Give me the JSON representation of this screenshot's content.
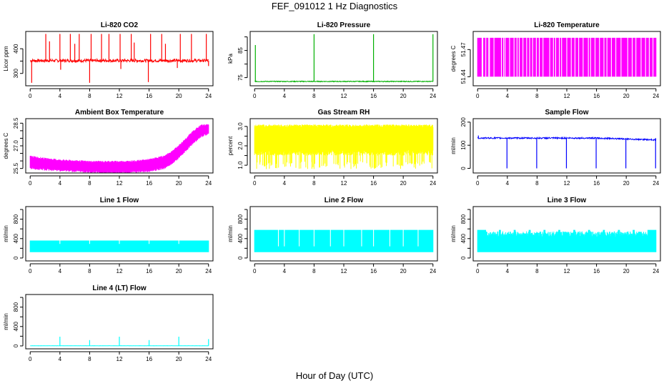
{
  "title": "FEF_091012  1 Hz Diagnostics",
  "xlabel": "Hour of Day (UTC)",
  "x_ticks": [
    0,
    4,
    8,
    12,
    16,
    20,
    24
  ],
  "chart_data": [
    {
      "type": "line",
      "title": "Li-820 CO2",
      "ylabel": "Licor ppm",
      "color": "#ff0000",
      "ylim": [
        250,
        470
      ],
      "yticks": [
        300,
        350,
        400
      ],
      "yticklabels": [
        "300",
        "",
        "400"
      ],
      "baseline": 352,
      "noise": 6,
      "spikes_up": [
        {
          "x": 2.1,
          "y": 460
        },
        {
          "x": 2.6,
          "y": 430
        },
        {
          "x": 4.0,
          "y": 460
        },
        {
          "x": 5.4,
          "y": 460
        },
        {
          "x": 6.0,
          "y": 420
        },
        {
          "x": 6.6,
          "y": 460
        },
        {
          "x": 8.2,
          "y": 460
        },
        {
          "x": 9.6,
          "y": 460
        },
        {
          "x": 10.6,
          "y": 460
        },
        {
          "x": 12.1,
          "y": 460
        },
        {
          "x": 13.6,
          "y": 460
        },
        {
          "x": 14.0,
          "y": 425
        },
        {
          "x": 16.2,
          "y": 460
        },
        {
          "x": 17.7,
          "y": 460
        },
        {
          "x": 18.2,
          "y": 420
        },
        {
          "x": 20.2,
          "y": 460
        },
        {
          "x": 21.7,
          "y": 460
        },
        {
          "x": 23.7,
          "y": 460
        }
      ],
      "spikes_down": [
        {
          "x": 0.2,
          "y": 262
        },
        {
          "x": 4.1,
          "y": 315
        },
        {
          "x": 8.0,
          "y": 262
        },
        {
          "x": 12.2,
          "y": 318
        },
        {
          "x": 15.9,
          "y": 265
        },
        {
          "x": 19.8,
          "y": 322
        },
        {
          "x": 24.0,
          "y": 330
        }
      ]
    },
    {
      "type": "line",
      "title": "Li-820 Pressure",
      "ylabel": "kPa",
      "color": "#00b000",
      "ylim": [
        72,
        92
      ],
      "yticks": [
        75,
        80,
        85,
        90
      ],
      "yticklabels": [
        "75",
        "",
        "85",
        ""
      ],
      "baseline": 73.6,
      "noise": 0.15,
      "spikes_up": [
        {
          "x": 0.1,
          "y": 87
        },
        {
          "x": 8.0,
          "y": 91
        },
        {
          "x": 16.0,
          "y": 91
        },
        {
          "x": 24.0,
          "y": 91
        }
      ],
      "spikes_down": []
    },
    {
      "type": "area",
      "title": "Li-820 Temperature",
      "ylabel": "degrees C",
      "color": "#ff00ff",
      "ylim": [
        51.43,
        51.49
      ],
      "yticks": [
        51.44,
        51.47
      ],
      "yticklabels": [
        "51.44",
        "51.47"
      ],
      "band": [
        51.44,
        51.483
      ],
      "gaps": [
        0.6,
        0.7,
        1.1,
        1.5,
        1.6,
        2.2,
        3.2,
        3.5,
        3.7,
        4.3,
        4.9,
        5.3,
        5.6,
        6.1,
        6.6,
        7.0,
        7.4,
        7.9,
        8.3,
        8.8,
        9.7,
        10.2,
        10.5,
        11.0,
        11.3,
        12.0,
        12.6,
        13.1,
        13.6,
        14.2,
        14.9,
        15.2,
        15.8,
        16.4,
        17.0,
        17.4,
        18.0,
        18.6,
        19.3,
        20.2,
        20.8,
        21.3,
        22.0,
        22.6,
        23.1,
        23.6
      ]
    },
    {
      "type": "area",
      "title": "Ambient Box Temperature",
      "ylabel": "degrees C",
      "color": "#ff00ff",
      "ylim": [
        25.2,
        28.8
      ],
      "yticks": [
        25.5,
        26,
        26.5,
        27,
        27.5,
        28,
        28.5
      ],
      "yticklabels": [
        "25.5",
        "",
        "",
        "27.0",
        "",
        "",
        "28.5"
      ],
      "upper": [
        [
          0,
          26.3
        ],
        [
          2,
          26.15
        ],
        [
          4,
          26.05
        ],
        [
          6,
          26.0
        ],
        [
          8,
          25.95
        ],
        [
          10,
          25.95
        ],
        [
          12,
          25.95
        ],
        [
          14,
          25.98
        ],
        [
          16,
          26.08
        ],
        [
          18,
          26.3
        ],
        [
          19,
          26.6
        ],
        [
          20,
          27.0
        ],
        [
          21,
          27.5
        ],
        [
          22,
          28.0
        ],
        [
          23,
          28.35
        ],
        [
          24,
          28.4
        ]
      ],
      "lower": [
        [
          0,
          25.6
        ],
        [
          2,
          25.5
        ],
        [
          4,
          25.45
        ],
        [
          6,
          25.4
        ],
        [
          8,
          25.35
        ],
        [
          10,
          25.3
        ],
        [
          12,
          25.3
        ],
        [
          14,
          25.35
        ],
        [
          16,
          25.4
        ],
        [
          18,
          25.6
        ],
        [
          19,
          25.9
        ],
        [
          20,
          26.3
        ],
        [
          21,
          26.8
        ],
        [
          22,
          27.3
        ],
        [
          23,
          27.7
        ],
        [
          24,
          27.9
        ]
      ]
    },
    {
      "type": "area",
      "title": "Gas Stream RH",
      "ylabel": "percent",
      "color": "#ffff00",
      "ylim": [
        0.6,
        3.4
      ],
      "yticks": [
        1.0,
        1.5,
        2.0,
        2.5,
        3.0
      ],
      "yticklabels": [
        "1.0",
        "",
        "2.0",
        "",
        "3.0"
      ],
      "band": [
        1.8,
        3.1
      ],
      "dips": 110,
      "dip_min": 0.8
    },
    {
      "type": "line",
      "title": "Sample Flow",
      "ylabel": "ml/min",
      "color": "#0000ff",
      "ylim": [
        -20,
        215
      ],
      "yticks": [
        0,
        100,
        200
      ],
      "yticklabels": [
        "0",
        "100",
        "200"
      ],
      "baseline": 131,
      "noise": 3,
      "end_value": 123,
      "spikes_up": [
        {
          "x": 0.1,
          "y": 142
        }
      ],
      "spikes_down": [
        {
          "x": 3.95,
          "y": 0
        },
        {
          "x": 7.95,
          "y": 0
        },
        {
          "x": 11.95,
          "y": 0
        },
        {
          "x": 15.95,
          "y": 0
        },
        {
          "x": 19.95,
          "y": 0
        },
        {
          "x": 23.95,
          "y": 0
        }
      ]
    },
    {
      "type": "area",
      "title": "Line 1 Flow",
      "ylabel": "ml/min",
      "color": "#00ffff",
      "ylim": [
        -60,
        1060
      ],
      "yticks": [
        0,
        200,
        400,
        600,
        800,
        1000
      ],
      "yticklabels": [
        "0",
        "400",
        "800"
      ],
      "yticklabel_values": [
        0,
        400,
        800
      ],
      "band": [
        120,
        360
      ],
      "gaps": [
        4.0,
        8.0,
        12.0,
        16.0,
        20.0
      ],
      "gap_drop": 170
    },
    {
      "type": "area",
      "title": "Line 2 Flow",
      "ylabel": "ml/min",
      "color": "#00ffff",
      "ylim": [
        -60,
        1060
      ],
      "yticks": [
        0,
        200,
        400,
        600,
        800,
        1000
      ],
      "yticklabels": [
        "0",
        "400",
        "800"
      ],
      "yticklabel_values": [
        0,
        400,
        800
      ],
      "band": [
        120,
        580
      ],
      "gaps": [
        3.2,
        4.0,
        6.0,
        8.0,
        10.2,
        12.0,
        14.4,
        16.0,
        18.2,
        20.0,
        22.0
      ],
      "gap_drop": 120
    },
    {
      "type": "area",
      "title": "Line 3 Flow",
      "ylabel": "ml/min",
      "color": "#00ffff",
      "ylim": [
        -60,
        1060
      ],
      "yticks": [
        0,
        200,
        400,
        600,
        800,
        1000
      ],
      "yticklabels": [
        "0",
        "400",
        "800"
      ],
      "yticklabel_values": [
        0,
        400,
        800
      ],
      "band": [
        120,
        580
      ],
      "notch_low": 430,
      "notches": [
        2.0,
        4.0,
        6.0,
        8.0,
        10.0,
        12.0,
        14.0,
        16.0,
        18.0,
        20.0,
        22.0
      ],
      "gap_drop": 120
    },
    {
      "type": "line",
      "title": "Line 4 (LT) Flow",
      "ylabel": "ml/min",
      "color": "#00ffff",
      "ylim": [
        -60,
        1060
      ],
      "yticks": [
        0,
        200,
        400,
        600,
        800,
        1000
      ],
      "yticklabels": [
        "0",
        "400",
        "800"
      ],
      "yticklabel_values": [
        0,
        400,
        800
      ],
      "baseline": 3,
      "noise": 2,
      "spikes_up": [
        {
          "x": 4.0,
          "y": 190
        },
        {
          "x": 8.0,
          "y": 120
        },
        {
          "x": 12.0,
          "y": 190
        },
        {
          "x": 16.0,
          "y": 120
        },
        {
          "x": 20.0,
          "y": 190
        },
        {
          "x": 24.0,
          "y": 140
        }
      ],
      "spikes_down": []
    }
  ]
}
